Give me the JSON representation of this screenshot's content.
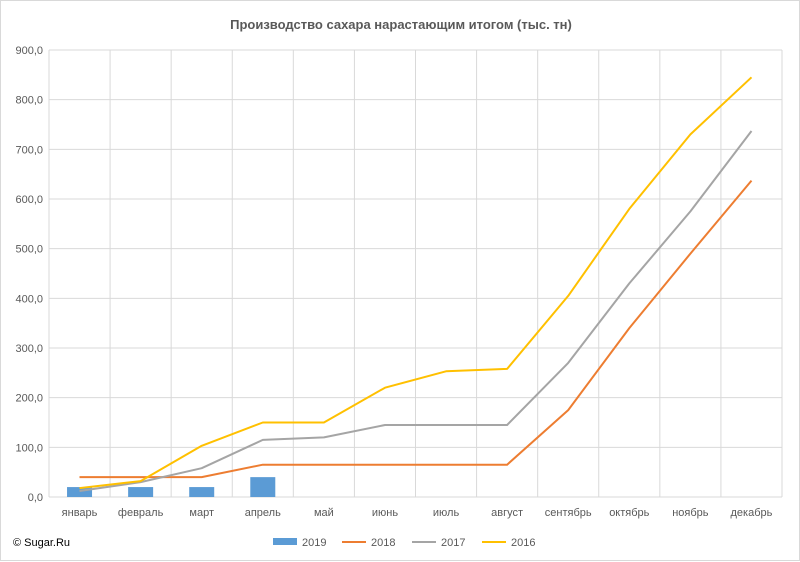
{
  "chart_data": {
    "type": "bar",
    "title": "Производство сахара нарастающим итогом (тыс. тн)",
    "categories": [
      "январь",
      "февраль",
      "март",
      "апрель",
      "май",
      "июнь",
      "июль",
      "август",
      "сентябрь",
      "октябрь",
      "ноябрь",
      "декабрь"
    ],
    "ylim": [
      0,
      900
    ],
    "yticks": [
      "0,0",
      "100,0",
      "200,0",
      "300,0",
      "400,0",
      "500,0",
      "600,0",
      "700,0",
      "800,0",
      "900,0"
    ],
    "grid": true,
    "legend_position": "bottom",
    "series": [
      {
        "name": "2019",
        "kind": "bar",
        "color": "#5b9bd5",
        "values": [
          20,
          20,
          20,
          40,
          null,
          null,
          null,
          null,
          null,
          null,
          null,
          null
        ]
      },
      {
        "name": "2018",
        "kind": "line",
        "color": "#ed7d31",
        "values": [
          40,
          40,
          40,
          65,
          65,
          65,
          65,
          65,
          175,
          340,
          490,
          637
        ]
      },
      {
        "name": "2017",
        "kind": "line",
        "color": "#a5a5a5",
        "values": [
          12,
          30,
          58,
          115,
          120,
          145,
          145,
          145,
          270,
          430,
          575,
          737
        ]
      },
      {
        "name": "2016",
        "kind": "line",
        "color": "#ffc000",
        "values": [
          18,
          32,
          103,
          150,
          150,
          220,
          253,
          258,
          405,
          580,
          730,
          845
        ]
      }
    ]
  },
  "copyright": "© Sugar.Ru"
}
